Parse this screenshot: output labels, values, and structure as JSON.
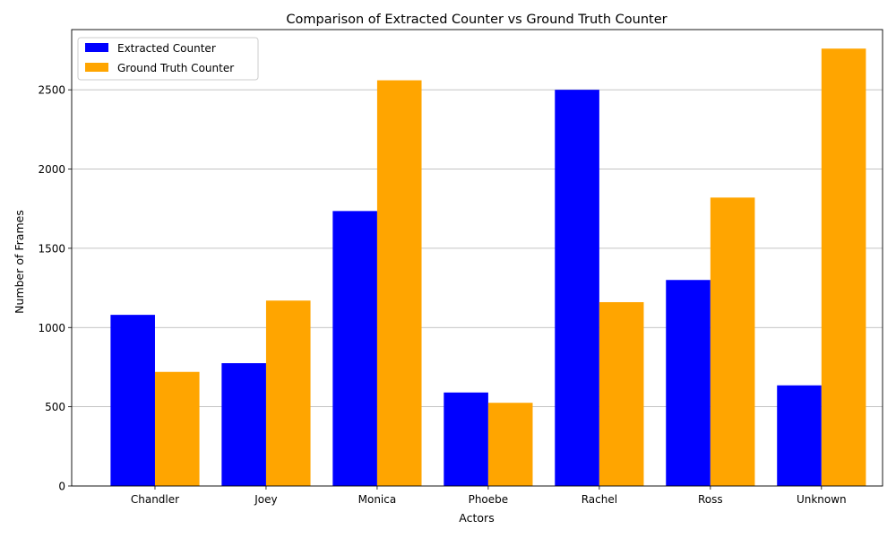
{
  "chart_data": {
    "type": "bar",
    "title": "Comparison of Extracted Counter vs Ground Truth Counter",
    "xlabel": "Actors",
    "ylabel": "Number of Frames",
    "categories": [
      "Chandler",
      "Joey",
      "Monica",
      "Phoebe",
      "Rachel",
      "Ross",
      "Unknown"
    ],
    "series": [
      {
        "name": "Extracted Counter",
        "color": "#0000ff",
        "values": [
          1080,
          775,
          1735,
          590,
          2500,
          1300,
          635
        ]
      },
      {
        "name": "Ground Truth Counter",
        "color": "#ffa500",
        "values": [
          720,
          1170,
          2560,
          525,
          1160,
          1820,
          2760
        ]
      }
    ],
    "ylim": [
      0,
      2880
    ],
    "yticks": [
      0,
      500,
      1000,
      1500,
      2000,
      2500
    ],
    "grid": "y-axis",
    "legend": "top-left"
  }
}
